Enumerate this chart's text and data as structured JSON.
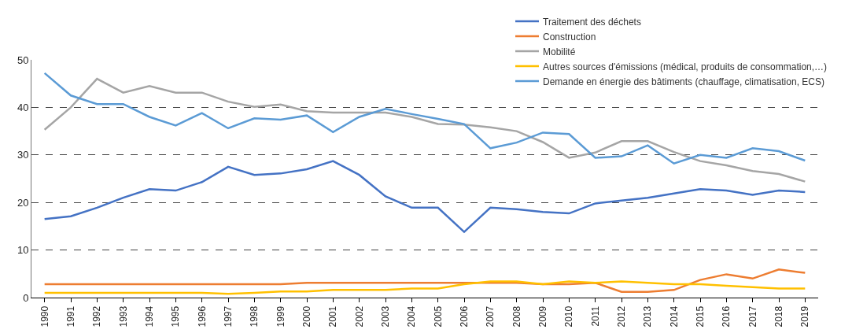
{
  "chart_data": {
    "type": "line",
    "categories": [
      "1990",
      "1991",
      "1992",
      "1993",
      "1994",
      "1995",
      "1996",
      "1997",
      "1998",
      "1999",
      "2000",
      "2001",
      "2002",
      "2003",
      "2004",
      "2005",
      "2006",
      "2007",
      "2008",
      "2009",
      "2010",
      "2011",
      "2012",
      "2013",
      "2014",
      "2015",
      "2016",
      "2017",
      "2018",
      "2019"
    ],
    "series": [
      {
        "name": "Traitement des déchets",
        "color": "#4472c4",
        "values": [
          16.5,
          17.1,
          18.9,
          21.0,
          22.8,
          22.5,
          24.3,
          27.5,
          25.8,
          26.1,
          27.0,
          28.7,
          25.8,
          21.3,
          18.9,
          18.9,
          13.8,
          18.9,
          18.6,
          18.0,
          17.7,
          19.8,
          20.4,
          21.0,
          21.9,
          22.8,
          22.5,
          21.6,
          22.5,
          22.2
        ]
      },
      {
        "name": "Construction",
        "color": "#ed7d31",
        "values": [
          2.8,
          2.8,
          2.8,
          2.8,
          2.8,
          2.8,
          2.8,
          2.8,
          2.8,
          2.8,
          3.1,
          3.1,
          3.1,
          3.1,
          3.1,
          3.1,
          3.1,
          3.1,
          3.1,
          2.8,
          2.8,
          3.1,
          1.2,
          1.2,
          1.6,
          3.7,
          4.9,
          4.0,
          5.9,
          5.2
        ]
      },
      {
        "name": "Mobilité",
        "color": "#a5a5a5",
        "values": [
          35.3,
          40.0,
          46.0,
          43.1,
          44.5,
          43.1,
          43.1,
          41.2,
          40.1,
          40.6,
          39.2,
          38.9,
          38.9,
          38.9,
          38.0,
          36.5,
          36.4,
          35.8,
          35.0,
          32.7,
          29.4,
          30.5,
          32.9,
          32.9,
          30.6,
          28.7,
          27.8,
          26.6,
          26.0,
          24.4
        ]
      },
      {
        "name": "Autres sources d'émissions (médical, produits de consommation,…)",
        "color": "#ffc000",
        "values": [
          1.0,
          1.0,
          1.0,
          1.0,
          1.0,
          1.0,
          1.0,
          0.8,
          1.0,
          1.3,
          1.3,
          1.6,
          1.6,
          1.6,
          1.9,
          1.9,
          2.8,
          3.4,
          3.4,
          2.8,
          3.4,
          3.1,
          3.4,
          3.1,
          2.8,
          2.8,
          2.5,
          2.2,
          1.9,
          1.9
        ]
      },
      {
        "name": "Demande en énergie des bâtiments (chauffage, climatisation, ECS)",
        "color": "#5b9bd5",
        "values": [
          47.2,
          42.5,
          40.7,
          40.7,
          38.0,
          36.2,
          38.8,
          35.6,
          37.7,
          37.4,
          38.3,
          34.8,
          38.0,
          39.7,
          38.6,
          37.6,
          36.5,
          31.4,
          32.6,
          34.7,
          34.4,
          29.4,
          29.7,
          32.0,
          28.2,
          30.0,
          29.4,
          31.4,
          30.8,
          28.8
        ]
      }
    ],
    "ylim": [
      0,
      50
    ],
    "yticks": [
      0,
      10,
      20,
      30,
      40,
      50
    ],
    "grid": "y",
    "legend": "top right",
    "marker": "none",
    "line_style": "solid"
  }
}
